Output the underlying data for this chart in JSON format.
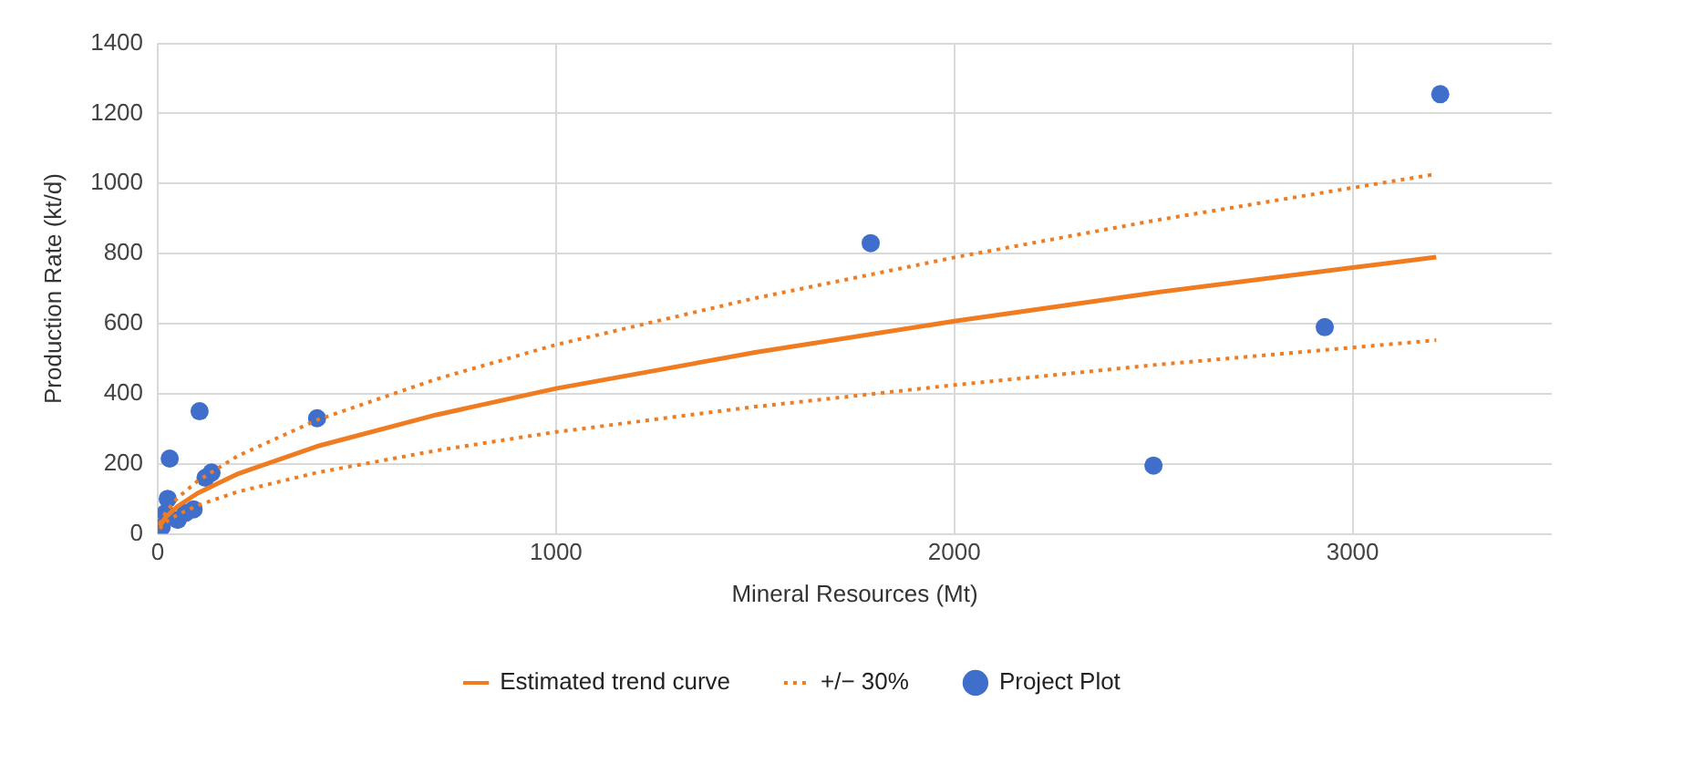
{
  "chart_data": {
    "type": "scatter",
    "xlabel": "Mineral Resources (Mt)",
    "ylabel": "Production Rate (kt/d)",
    "xlim": [
      0,
      3500
    ],
    "xticks": [
      0,
      1000,
      2000,
      3000
    ],
    "ylim": [
      0,
      1400
    ],
    "yticks": [
      0,
      200,
      400,
      600,
      800,
      1000,
      1200,
      1400
    ],
    "grid": true,
    "legend": "bottom",
    "series": [
      {
        "name": "Estimated trend curve",
        "type": "line",
        "color": "#f07c22",
        "marker": "none",
        "line_style": "solid",
        "x": [
          5,
          20,
          50,
          100,
          200,
          400,
          700,
          1000,
          1500,
          2000,
          2500,
          3000,
          3210
        ],
        "values": [
          22,
          48,
          79,
          116,
          171,
          250,
          340,
          415,
          518,
          607,
          688,
          760,
          790
        ]
      },
      {
        "name": "+/− 30%",
        "type": "line",
        "color": "#f07c22",
        "marker": "none",
        "line_style": "dotted",
        "x": [
          5,
          20,
          50,
          100,
          200,
          400,
          700,
          1000,
          1500,
          2000,
          2500,
          3000,
          3210
        ],
        "values": [
          29,
          62,
          103,
          151,
          222,
          325,
          442,
          540,
          673,
          789,
          894,
          988,
          1027
        ]
      },
      {
        "type": "line",
        "color": "#f07c22",
        "marker": "none",
        "line_style": "dotted",
        "x": [
          5,
          20,
          50,
          100,
          200,
          400,
          700,
          1000,
          1500,
          2000,
          2500,
          3000,
          3210
        ],
        "values": [
          15,
          34,
          55,
          81,
          120,
          175,
          238,
          291,
          363,
          425,
          482,
          532,
          553
        ]
      },
      {
        "name": "Project Plot",
        "color": "#3f6fca",
        "marker": "circle",
        "x": [
          3220,
          1790,
          2500,
          2930,
          400,
          105,
          30,
          120,
          135,
          25,
          90,
          50,
          20,
          10,
          70
        ],
        "values": [
          1255,
          830,
          195,
          590,
          330,
          350,
          215,
          160,
          175,
          100,
          70,
          40,
          60,
          20,
          60
        ]
      }
    ]
  }
}
